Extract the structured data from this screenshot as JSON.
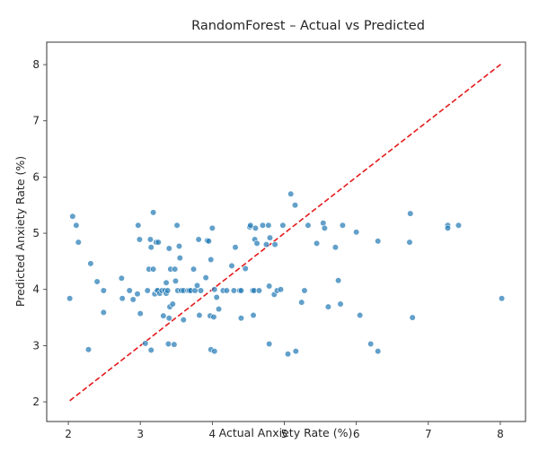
{
  "chart_data": {
    "type": "scatter",
    "title": "RandomForest – Actual vs Predicted",
    "xlabel": "Actual Anxiety Rate (%)",
    "ylabel": "Predicted Anxiety Rate (%)",
    "xlim": [
      1.7,
      8.35
    ],
    "ylim": [
      1.65,
      8.4
    ],
    "xticks": [
      2,
      3,
      4,
      5,
      6,
      7,
      8
    ],
    "yticks": [
      2,
      3,
      4,
      5,
      6,
      7,
      8
    ],
    "grid": false,
    "legend": "none",
    "colors": {
      "points": "#1f77b4",
      "reference_line": "#e41a1c",
      "axes": "#333333"
    },
    "reference_line": {
      "x": [
        2.02,
        8.02
      ],
      "y": [
        2.02,
        8.02
      ],
      "style": "dashed"
    },
    "series": [
      {
        "points": [
          [
            2.02,
            3.84
          ],
          [
            2.06,
            5.3
          ],
          [
            2.11,
            5.14
          ],
          [
            2.14,
            4.84
          ],
          [
            2.28,
            2.93
          ],
          [
            2.31,
            4.46
          ],
          [
            2.4,
            4.14
          ],
          [
            2.49,
            3.98
          ],
          [
            2.49,
            3.59
          ],
          [
            2.74,
            4.2
          ],
          [
            2.75,
            3.84
          ],
          [
            2.85,
            3.98
          ],
          [
            2.9,
            3.82
          ],
          [
            2.96,
            3.92
          ],
          [
            2.97,
            5.14
          ],
          [
            2.99,
            4.89
          ],
          [
            3.0,
            3.57
          ],
          [
            3.07,
            3.04
          ],
          [
            3.1,
            3.98
          ],
          [
            3.12,
            4.36
          ],
          [
            3.14,
            4.89
          ],
          [
            3.15,
            4.75
          ],
          [
            3.15,
            2.92
          ],
          [
            3.18,
            4.36
          ],
          [
            3.18,
            5.37
          ],
          [
            3.2,
            3.92
          ],
          [
            3.22,
            4.84
          ],
          [
            3.23,
            3.98
          ],
          [
            3.24,
            3.98
          ],
          [
            3.25,
            4.84
          ],
          [
            3.27,
            3.93
          ],
          [
            3.3,
            3.98
          ],
          [
            3.32,
            3.53
          ],
          [
            3.34,
            3.98
          ],
          [
            3.36,
            3.93
          ],
          [
            3.36,
            4.12
          ],
          [
            3.38,
            3.98
          ],
          [
            3.39,
            3.03
          ],
          [
            3.4,
            4.73
          ],
          [
            3.4,
            3.49
          ],
          [
            3.41,
            3.69
          ],
          [
            3.42,
            4.36
          ],
          [
            3.45,
            3.74
          ],
          [
            3.47,
            3.02
          ],
          [
            3.48,
            4.36
          ],
          [
            3.49,
            4.15
          ],
          [
            3.51,
            5.14
          ],
          [
            3.52,
            3.98
          ],
          [
            3.54,
            4.77
          ],
          [
            3.55,
            4.56
          ],
          [
            3.57,
            3.98
          ],
          [
            3.6,
            3.46
          ],
          [
            3.6,
            3.98
          ],
          [
            3.66,
            3.98
          ],
          [
            3.68,
            3.98
          ],
          [
            3.7,
            3.98
          ],
          [
            3.74,
            4.36
          ],
          [
            3.76,
            3.98
          ],
          [
            3.79,
            4.07
          ],
          [
            3.81,
            4.89
          ],
          [
            3.82,
            3.54
          ],
          [
            3.84,
            3.98
          ],
          [
            3.91,
            4.21
          ],
          [
            3.93,
            4.87
          ],
          [
            3.95,
            4.86
          ],
          [
            3.97,
            3.53
          ],
          [
            3.98,
            4.53
          ],
          [
            3.98,
            2.93
          ],
          [
            4.0,
            5.09
          ],
          [
            4.02,
            3.51
          ],
          [
            4.03,
            4.0
          ],
          [
            4.03,
            2.9
          ],
          [
            4.06,
            3.86
          ],
          [
            4.09,
            3.65
          ],
          [
            4.15,
            3.98
          ],
          [
            4.2,
            3.98
          ],
          [
            4.27,
            4.42
          ],
          [
            4.3,
            3.98
          ],
          [
            4.32,
            4.75
          ],
          [
            4.38,
            3.98
          ],
          [
            4.4,
            3.49
          ],
          [
            4.4,
            3.98
          ],
          [
            4.46,
            4.37
          ],
          [
            4.52,
            5.11
          ],
          [
            4.53,
            5.14
          ],
          [
            4.56,
            3.98
          ],
          [
            4.57,
            3.54
          ],
          [
            4.58,
            3.98
          ],
          [
            4.59,
            4.89
          ],
          [
            4.6,
            5.09
          ],
          [
            4.62,
            4.82
          ],
          [
            4.65,
            3.98
          ],
          [
            4.7,
            5.14
          ],
          [
            4.75,
            4.8
          ],
          [
            4.78,
            5.14
          ],
          [
            4.79,
            3.03
          ],
          [
            4.79,
            4.06
          ],
          [
            4.8,
            4.92
          ],
          [
            4.86,
            3.91
          ],
          [
            4.87,
            4.8
          ],
          [
            4.9,
            3.98
          ],
          [
            4.95,
            4.0
          ],
          [
            4.98,
            5.14
          ],
          [
            5.05,
            2.85
          ],
          [
            5.09,
            5.7
          ],
          [
            5.15,
            5.5
          ],
          [
            5.16,
            2.9
          ],
          [
            5.24,
            3.77
          ],
          [
            5.28,
            3.98
          ],
          [
            5.33,
            5.14
          ],
          [
            5.45,
            4.82
          ],
          [
            5.54,
            5.18
          ],
          [
            5.56,
            5.09
          ],
          [
            5.61,
            3.69
          ],
          [
            5.71,
            4.75
          ],
          [
            5.75,
            4.16
          ],
          [
            5.78,
            3.74
          ],
          [
            5.81,
            5.14
          ],
          [
            6.0,
            5.02
          ],
          [
            6.05,
            3.54
          ],
          [
            6.2,
            3.03
          ],
          [
            6.3,
            2.9
          ],
          [
            6.3,
            4.86
          ],
          [
            6.74,
            4.84
          ],
          [
            6.75,
            5.35
          ],
          [
            6.78,
            3.5
          ],
          [
            7.27,
            5.14
          ],
          [
            7.27,
            5.09
          ],
          [
            7.42,
            5.14
          ],
          [
            8.02,
            3.84
          ]
        ]
      }
    ]
  }
}
